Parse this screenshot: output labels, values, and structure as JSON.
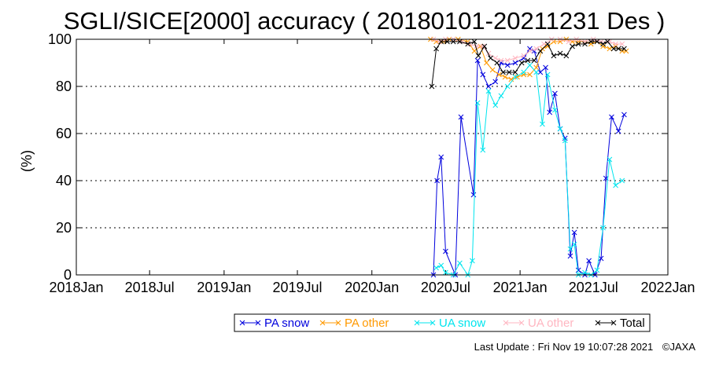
{
  "chart_data": {
    "type": "line",
    "title": "SGLI/SICE[2000] accuracy ( 20180101-20211231 Des )",
    "ylabel": "(%)",
    "xlabel": "",
    "ylim": [
      0,
      100
    ],
    "yticks": [
      0,
      20,
      40,
      60,
      80,
      100
    ],
    "xlim": [
      "2018-01-01",
      "2022-01-01"
    ],
    "xticks": [
      {
        "date": "2018-01-01",
        "label": "2018Jan"
      },
      {
        "date": "2018-07-01",
        "label": "2018Jul"
      },
      {
        "date": "2019-01-01",
        "label": "2019Jan"
      },
      {
        "date": "2019-07-01",
        "label": "2019Jul"
      },
      {
        "date": "2020-01-01",
        "label": "2020Jan"
      },
      {
        "date": "2020-07-01",
        "label": "2020Jul"
      },
      {
        "date": "2021-01-01",
        "label": "2021Jan"
      },
      {
        "date": "2021-07-01",
        "label": "2021Jul"
      },
      {
        "date": "2022-01-01",
        "label": "2022Jan"
      }
    ],
    "grid": "horizontal dotted",
    "legend_position": "bottom",
    "series": [
      {
        "name": "PA snow",
        "color": "#0000dd",
        "points": [
          [
            "2020-06-01",
            0
          ],
          [
            "2020-06-10",
            40
          ],
          [
            "2020-06-20",
            50
          ],
          [
            "2020-07-01",
            10
          ],
          [
            "2020-07-25",
            0
          ],
          [
            "2020-08-08",
            67
          ],
          [
            "2020-09-08",
            34
          ],
          [
            "2020-09-18",
            91
          ],
          [
            "2020-10-01",
            85
          ],
          [
            "2020-10-15",
            80
          ],
          [
            "2020-11-01",
            82
          ],
          [
            "2020-11-15",
            90
          ],
          [
            "2020-12-01",
            89
          ],
          [
            "2020-12-20",
            90
          ],
          [
            "2021-01-10",
            92
          ],
          [
            "2021-01-25",
            96
          ],
          [
            "2021-02-05",
            95
          ],
          [
            "2021-02-20",
            86
          ],
          [
            "2021-03-05",
            88
          ],
          [
            "2021-03-15",
            69
          ],
          [
            "2021-03-28",
            77
          ],
          [
            "2021-04-10",
            62
          ],
          [
            "2021-04-22",
            58
          ],
          [
            "2021-05-05",
            8
          ],
          [
            "2021-05-15",
            18
          ],
          [
            "2021-05-25",
            2
          ],
          [
            "2021-06-10",
            0
          ],
          [
            "2021-06-20",
            6
          ],
          [
            "2021-07-05",
            0
          ],
          [
            "2021-07-20",
            7
          ],
          [
            "2021-08-01",
            41
          ],
          [
            "2021-08-15",
            67
          ],
          [
            "2021-09-01",
            61
          ],
          [
            "2021-09-15",
            68
          ]
        ]
      },
      {
        "name": "PA other",
        "color": "#ff9900",
        "points": [
          [
            "2020-05-25",
            100
          ],
          [
            "2020-06-08",
            99
          ],
          [
            "2020-06-25",
            99
          ],
          [
            "2020-07-10",
            100
          ],
          [
            "2020-08-01",
            100
          ],
          [
            "2020-08-25",
            99
          ],
          [
            "2020-09-10",
            95
          ],
          [
            "2020-09-25",
            97
          ],
          [
            "2020-10-10",
            90
          ],
          [
            "2020-10-25",
            87
          ],
          [
            "2020-11-10",
            85
          ],
          [
            "2020-11-25",
            84
          ],
          [
            "2020-12-10",
            83
          ],
          [
            "2020-12-25",
            84
          ],
          [
            "2021-01-10",
            85
          ],
          [
            "2021-01-25",
            85
          ],
          [
            "2021-02-10",
            88
          ],
          [
            "2021-02-25",
            96
          ],
          [
            "2021-03-10",
            97
          ],
          [
            "2021-03-25",
            99
          ],
          [
            "2021-04-10",
            99
          ],
          [
            "2021-04-25",
            100
          ],
          [
            "2021-05-10",
            99
          ],
          [
            "2021-05-25",
            99
          ],
          [
            "2021-06-10",
            99
          ],
          [
            "2021-06-25",
            98
          ],
          [
            "2021-07-10",
            99
          ],
          [
            "2021-07-25",
            97
          ],
          [
            "2021-08-10",
            96
          ],
          [
            "2021-08-25",
            97
          ],
          [
            "2021-09-10",
            95
          ],
          [
            "2021-09-20",
            95
          ]
        ]
      },
      {
        "name": "UA snow",
        "color": "#00e5ee",
        "points": [
          [
            "2020-06-08",
            3
          ],
          [
            "2020-06-20",
            4
          ],
          [
            "2020-07-01",
            1
          ],
          [
            "2020-07-20",
            0
          ],
          [
            "2020-08-05",
            5
          ],
          [
            "2020-08-25",
            0
          ],
          [
            "2020-09-05",
            6
          ],
          [
            "2020-09-18",
            73
          ],
          [
            "2020-10-01",
            53
          ],
          [
            "2020-10-15",
            78
          ],
          [
            "2020-11-01",
            72
          ],
          [
            "2020-11-15",
            76
          ],
          [
            "2020-12-01",
            80
          ],
          [
            "2020-12-20",
            84
          ],
          [
            "2021-01-10",
            86
          ],
          [
            "2021-01-25",
            89
          ],
          [
            "2021-02-10",
            86
          ],
          [
            "2021-02-25",
            64
          ],
          [
            "2021-03-10",
            85
          ],
          [
            "2021-03-28",
            70
          ],
          [
            "2021-04-10",
            62
          ],
          [
            "2021-04-22",
            57
          ],
          [
            "2021-05-05",
            11
          ],
          [
            "2021-05-15",
            13
          ],
          [
            "2021-05-25",
            0
          ],
          [
            "2021-06-10",
            1
          ],
          [
            "2021-06-25",
            0
          ],
          [
            "2021-07-10",
            2
          ],
          [
            "2021-07-25",
            20
          ],
          [
            "2021-08-10",
            49
          ],
          [
            "2021-08-25",
            38
          ],
          [
            "2021-09-10",
            40
          ]
        ]
      },
      {
        "name": "UA other",
        "color": "#ffb6c1",
        "points": [
          [
            "2020-06-01",
            100
          ],
          [
            "2020-06-15",
            99
          ],
          [
            "2020-07-01",
            100
          ],
          [
            "2020-07-20",
            100
          ],
          [
            "2020-08-10",
            99
          ],
          [
            "2020-08-30",
            98
          ],
          [
            "2020-09-15",
            97
          ],
          [
            "2020-10-01",
            97
          ],
          [
            "2020-10-15",
            94
          ],
          [
            "2020-11-01",
            92
          ],
          [
            "2020-11-15",
            91
          ],
          [
            "2020-12-01",
            91
          ],
          [
            "2020-12-20",
            92
          ],
          [
            "2021-01-10",
            93
          ],
          [
            "2021-01-25",
            95
          ],
          [
            "2021-02-10",
            96
          ],
          [
            "2021-03-01",
            98
          ],
          [
            "2021-03-20",
            100
          ],
          [
            "2021-04-10",
            100
          ],
          [
            "2021-05-01",
            99
          ],
          [
            "2021-05-20",
            100
          ],
          [
            "2021-06-10",
            99
          ],
          [
            "2021-07-01",
            100
          ],
          [
            "2021-07-20",
            99
          ],
          [
            "2021-08-10",
            99
          ],
          [
            "2021-08-25",
            98
          ],
          [
            "2021-09-10",
            98
          ]
        ]
      },
      {
        "name": "Total",
        "color": "#000000",
        "points": [
          [
            "2020-05-28",
            80
          ],
          [
            "2020-06-08",
            96
          ],
          [
            "2020-06-20",
            99
          ],
          [
            "2020-07-05",
            99
          ],
          [
            "2020-07-20",
            99
          ],
          [
            "2020-08-05",
            99
          ],
          [
            "2020-08-25",
            98
          ],
          [
            "2020-09-10",
            99
          ],
          [
            "2020-09-20",
            93
          ],
          [
            "2020-10-05",
            97
          ],
          [
            "2020-10-20",
            92
          ],
          [
            "2020-11-05",
            90
          ],
          [
            "2020-11-20",
            86
          ],
          [
            "2020-12-05",
            86
          ],
          [
            "2020-12-20",
            86
          ],
          [
            "2021-01-05",
            90
          ],
          [
            "2021-01-20",
            91
          ],
          [
            "2021-02-05",
            91
          ],
          [
            "2021-02-20",
            95
          ],
          [
            "2021-03-10",
            98
          ],
          [
            "2021-03-25",
            93
          ],
          [
            "2021-04-10",
            94
          ],
          [
            "2021-04-25",
            93
          ],
          [
            "2021-05-10",
            97
          ],
          [
            "2021-05-25",
            98
          ],
          [
            "2021-06-10",
            98
          ],
          [
            "2021-06-25",
            99
          ],
          [
            "2021-07-10",
            99
          ],
          [
            "2021-07-25",
            98
          ],
          [
            "2021-08-05",
            99
          ],
          [
            "2021-08-20",
            96
          ],
          [
            "2021-09-01",
            96
          ],
          [
            "2021-09-15",
            96
          ]
        ]
      }
    ]
  },
  "footer": {
    "last_update": "Last Update : Fri Nov 19 10:07:28 2021",
    "copyright": "©JAXA"
  }
}
